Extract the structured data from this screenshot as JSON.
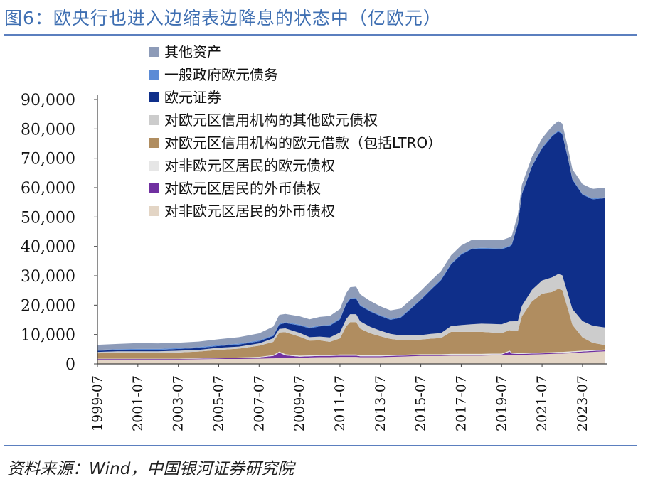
{
  "header": {
    "title": "图6：欧央行也进入边缩表边降息的状态中（亿欧元）"
  },
  "footer": {
    "source": "资料来源：Wind，中国银河证券研究院"
  },
  "chart_data": {
    "type": "area",
    "stacked": true,
    "unit": "亿欧元",
    "x_tick_labels": [
      "1999-07",
      "2001-07",
      "2003-07",
      "2005-07",
      "2007-07",
      "2009-07",
      "2011-07",
      "2013-07",
      "2015-07",
      "2017-07",
      "2019-07",
      "2021-07",
      "2023-07"
    ],
    "y_tick_labels": [
      "0",
      "10,000",
      "20,000",
      "30,000",
      "40,000",
      "50,000",
      "60,000",
      "70,000",
      "80,000",
      "90,000"
    ],
    "ylim": [
      0,
      90000
    ],
    "x": [
      1999.5,
      2000.5,
      2001.5,
      2002.5,
      2003.5,
      2004.5,
      2005.5,
      2006.5,
      2007.5,
      2008.2,
      2008.5,
      2008.8,
      2009.5,
      2010.0,
      2010.5,
      2011.0,
      2011.5,
      2011.8,
      2012.0,
      2012.3,
      2012.5,
      2013.0,
      2013.5,
      2014.0,
      2014.5,
      2015.0,
      2015.5,
      2016.0,
      2016.5,
      2017.0,
      2017.5,
      2018.0,
      2018.5,
      2019.0,
      2019.5,
      2019.9,
      2020.0,
      2020.3,
      2020.5,
      2021.0,
      2021.5,
      2022.0,
      2022.3,
      2022.5,
      2022.8,
      2023.0,
      2023.5,
      2024.0,
      2024.6
    ],
    "series": [
      {
        "name": "对非欧元区居民的外币债权",
        "color": "#e3d5c5",
        "values": [
          1500,
          1500,
          1500,
          1500,
          1500,
          1600,
          1700,
          1700,
          1800,
          1900,
          2000,
          2000,
          2000,
          2200,
          2300,
          2300,
          2400,
          2400,
          2400,
          2400,
          2300,
          2300,
          2300,
          2400,
          2500,
          2600,
          2700,
          2700,
          2700,
          2800,
          2800,
          2800,
          2800,
          2900,
          2900,
          3000,
          3000,
          3000,
          3100,
          3200,
          3300,
          3400,
          3500,
          3500,
          3600,
          3700,
          3900,
          4100,
          4300
        ]
      },
      {
        "name": "对欧元区居民的外币债权",
        "color": "#7030a0",
        "values": [
          200,
          200,
          200,
          200,
          200,
          200,
          200,
          300,
          400,
          800,
          1800,
          900,
          500,
          400,
          400,
          400,
          400,
          400,
          400,
          400,
          300,
          300,
          300,
          300,
          300,
          300,
          300,
          300,
          300,
          300,
          300,
          300,
          300,
          300,
          300,
          1200,
          500,
          400,
          300,
          300,
          300,
          300,
          300,
          300,
          300,
          300,
          300,
          300,
          300
        ]
      },
      {
        "name": "对非欧元区居民的欧元债权",
        "color": "#e6e6e6",
        "values": [
          100,
          100,
          100,
          100,
          100,
          100,
          100,
          200,
          200,
          300,
          400,
          400,
          300,
          300,
          300,
          300,
          400,
          400,
          400,
          400,
          400,
          300,
          300,
          300,
          300,
          300,
          300,
          300,
          300,
          300,
          300,
          300,
          300,
          300,
          300,
          300,
          300,
          300,
          300,
          300,
          300,
          300,
          300,
          300,
          300,
          300,
          300,
          300,
          300
        ]
      },
      {
        "name": "对欧元区信用机构的欧元借款（包括LTRO）",
        "color": "#b08d60",
        "values": [
          1800,
          2000,
          2000,
          2000,
          2100,
          2300,
          2800,
          3000,
          3800,
          4500,
          6500,
          7500,
          6500,
          5000,
          5000,
          4500,
          5500,
          9500,
          11000,
          11000,
          9000,
          7500,
          6500,
          5500,
          5000,
          5000,
          5000,
          5300,
          5500,
          7500,
          7500,
          7500,
          7500,
          7200,
          7000,
          7000,
          7500,
          7500,
          12500,
          17500,
          20000,
          20500,
          21500,
          21000,
          14000,
          9000,
          4500,
          2500,
          1500
        ]
      },
      {
        "name": "对欧元区信用机构的其他欧元债权",
        "color": "#cccccc",
        "values": [
          500,
          500,
          500,
          500,
          600,
          600,
          700,
          700,
          800,
          1200,
          1200,
          1300,
          1300,
          1200,
          1300,
          1500,
          2000,
          2500,
          2700,
          2700,
          2500,
          2200,
          1900,
          1700,
          1600,
          1500,
          1500,
          1600,
          1700,
          2000,
          2300,
          2600,
          2800,
          2900,
          3000,
          3000,
          3200,
          3400,
          3600,
          3900,
          4500,
          5000,
          5000,
          5100,
          5200,
          5400,
          5600,
          5800,
          6000
        ]
      },
      {
        "name": "欧元证券",
        "color": "#0f2f8a",
        "values": [
          400,
          400,
          500,
          500,
          600,
          600,
          600,
          700,
          700,
          800,
          1500,
          1800,
          2500,
          3000,
          3500,
          4000,
          4500,
          5000,
          5200,
          5300,
          5300,
          5200,
          5000,
          4800,
          6000,
          9000,
          12000,
          15000,
          18000,
          21000,
          24000,
          25500,
          25500,
          25500,
          25500,
          25500,
          26000,
          33000,
          38000,
          42000,
          45000,
          48000,
          48500,
          48000,
          46000,
          44000,
          43000,
          43000,
          44000
        ]
      },
      {
        "name": "一般政府欧元债务",
        "color": "#5b8bd6",
        "values": [
          300,
          300,
          300,
          300,
          300,
          300,
          300,
          300,
          300,
          300,
          300,
          300,
          300,
          300,
          300,
          300,
          300,
          300,
          300,
          300,
          300,
          300,
          300,
          300,
          300,
          300,
          300,
          300,
          300,
          300,
          300,
          300,
          300,
          300,
          300,
          300,
          300,
          300,
          300,
          300,
          300,
          300,
          300,
          300,
          300,
          300,
          300,
          300,
          300
        ]
      },
      {
        "name": "其他资产",
        "color": "#8d9bb8",
        "values": [
          1700,
          1800,
          2000,
          1900,
          1800,
          1900,
          2000,
          2200,
          2400,
          2900,
          3000,
          2800,
          2800,
          2800,
          2900,
          3000,
          3200,
          3500,
          3700,
          3800,
          3600,
          3300,
          3000,
          2900,
          2800,
          2800,
          2800,
          2800,
          2800,
          2800,
          2800,
          2800,
          2800,
          2800,
          2800,
          2800,
          2800,
          2900,
          2900,
          3000,
          3100,
          3200,
          3300,
          3300,
          3300,
          3300,
          3300,
          3300,
          3300
        ]
      }
    ]
  }
}
